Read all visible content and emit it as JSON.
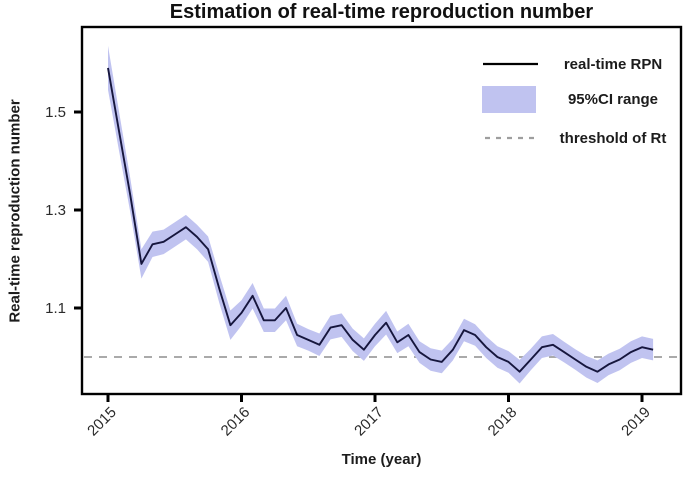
{
  "title": "Estimation of real-time reproduction number",
  "colors": {
    "line": "#16163d",
    "band": "#c0c3f0",
    "threshold": "#9e9e9e",
    "legend_line": "#000000",
    "box": "#000000",
    "tick_text": "#2b2b2b",
    "label_text": "#1c1c1c"
  },
  "legend": [
    {
      "type": "line",
      "label": "real-time RPN"
    },
    {
      "type": "band",
      "label": "95%CI range"
    },
    {
      "type": "dash",
      "label": "threshold of Rt"
    }
  ],
  "chart_data": {
    "type": "line",
    "title": "Estimation of real-time reproduction number",
    "xlabel": "Time (year)",
    "ylabel": "Real-time reproduction number",
    "x_ticks": [
      2015,
      2016,
      2017,
      2018,
      2019
    ],
    "x_tick_labels": [
      "2015",
      "2016",
      "2017",
      "2018",
      "2019"
    ],
    "y_ticks": [
      1.1,
      1.3,
      1.5
    ],
    "y_tick_labels": [
      "1.1",
      "1.3",
      "1.5"
    ],
    "xlim": [
      2014.81,
      2019.29
    ],
    "ylim": [
      0.925,
      1.675
    ],
    "grid": false,
    "legend_position": "top-right",
    "threshold": 1.0,
    "start_year": 2015,
    "points_per_year": 12,
    "months": [
      "2015-01",
      "2015-02",
      "2015-03",
      "2015-04",
      "2015-05",
      "2015-06",
      "2015-07",
      "2015-08",
      "2015-09",
      "2015-10",
      "2015-11",
      "2015-12",
      "2016-01",
      "2016-02",
      "2016-03",
      "2016-04",
      "2016-05",
      "2016-06",
      "2016-07",
      "2016-08",
      "2016-09",
      "2016-10",
      "2016-11",
      "2016-12",
      "2017-01",
      "2017-02",
      "2017-03",
      "2017-04",
      "2017-05",
      "2017-06",
      "2017-07",
      "2017-08",
      "2017-09",
      "2017-10",
      "2017-11",
      "2017-12",
      "2018-01",
      "2018-02",
      "2018-03",
      "2018-04",
      "2018-05",
      "2018-06",
      "2018-07",
      "2018-08",
      "2018-09",
      "2018-10",
      "2018-11",
      "2018-12",
      "2019-01",
      "2019-02"
    ],
    "series": [
      {
        "name": "real-time RPN",
        "values": [
          1.59,
          1.46,
          1.33,
          1.19,
          1.23,
          1.235,
          1.25,
          1.265,
          1.245,
          1.22,
          1.14,
          1.065,
          1.09,
          1.125,
          1.075,
          1.075,
          1.1,
          1.045,
          1.035,
          1.025,
          1.06,
          1.065,
          1.035,
          1.015,
          1.045,
          1.07,
          1.03,
          1.045,
          1.01,
          0.995,
          0.99,
          1.015,
          1.055,
          1.045,
          1.02,
          1.0,
          0.99,
          0.97,
          0.995,
          1.02,
          1.025,
          1.01,
          0.995,
          0.98,
          0.97,
          0.985,
          0.995,
          1.01,
          1.02,
          1.015
        ]
      },
      {
        "name": "95%CI half-width",
        "values": [
          0.045,
          0.04,
          0.035,
          0.03,
          0.026,
          0.025,
          0.025,
          0.025,
          0.025,
          0.026,
          0.029,
          0.03,
          0.026,
          0.026,
          0.024,
          0.024,
          0.025,
          0.023,
          0.022,
          0.023,
          0.024,
          0.024,
          0.023,
          0.023,
          0.023,
          0.024,
          0.022,
          0.023,
          0.022,
          0.023,
          0.023,
          0.022,
          0.023,
          0.022,
          0.022,
          0.022,
          0.022,
          0.024,
          0.022,
          0.022,
          0.022,
          0.021,
          0.021,
          0.022,
          0.023,
          0.022,
          0.022,
          0.022,
          0.022,
          0.022
        ]
      }
    ]
  }
}
